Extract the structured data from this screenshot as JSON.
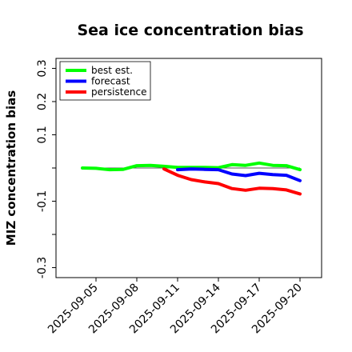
{
  "chart_data": {
    "type": "line",
    "title": "Sea ice concentration bias",
    "ylabel": "MIZ concentration bias",
    "xlabel": "",
    "x": [
      "2025-09-04",
      "2025-09-05",
      "2025-09-06",
      "2025-09-07",
      "2025-09-08",
      "2025-09-09",
      "2025-09-10",
      "2025-09-11",
      "2025-09-12",
      "2025-09-13",
      "2025-09-14",
      "2025-09-15",
      "2025-09-16",
      "2025-09-17",
      "2025-09-18",
      "2025-09-19",
      "2025-09-20"
    ],
    "x_tick_labels": [
      "2025-09-05",
      "2025-09-08",
      "2025-09-11",
      "2025-09-14",
      "2025-09-17",
      "2025-09-20"
    ],
    "highlighted_tick": "2025-09-11",
    "highlight_color": "#228b22",
    "y_ticks": [
      -0.3,
      -0.2,
      -0.1,
      0.0,
      0.1,
      0.2,
      0.3
    ],
    "y_tick_labels": [
      "-0.3",
      "",
      "-0.1",
      "",
      "0.1",
      "0.2",
      "0.3"
    ],
    "ylim": [
      -0.33,
      0.33
    ],
    "grid": false,
    "legend_position": "top-left",
    "reference_line": 0.0,
    "series": [
      {
        "name": "best est.",
        "color": "#00ff00",
        "x": [
          "2025-09-04",
          "2025-09-05",
          "2025-09-06",
          "2025-09-07",
          "2025-09-08",
          "2025-09-09",
          "2025-09-10",
          "2025-09-11",
          "2025-09-12",
          "2025-09-13",
          "2025-09-14",
          "2025-09-15",
          "2025-09-16",
          "2025-09-17",
          "2025-09-18",
          "2025-09-19",
          "2025-09-20"
        ],
        "values": [
          0.0,
          -0.001,
          -0.005,
          -0.004,
          0.007,
          0.008,
          0.005,
          0.002,
          0.002,
          0.002,
          0.001,
          0.01,
          0.008,
          0.015,
          0.008,
          0.007,
          -0.005
        ]
      },
      {
        "name": "forecast",
        "color": "#0000ff",
        "x": [
          "2025-09-11",
          "2025-09-12",
          "2025-09-13",
          "2025-09-14",
          "2025-09-15",
          "2025-09-16",
          "2025-09-17",
          "2025-09-18",
          "2025-09-19",
          "2025-09-20"
        ],
        "values": [
          -0.005,
          -0.003,
          -0.004,
          -0.005,
          -0.018,
          -0.023,
          -0.016,
          -0.02,
          -0.022,
          -0.038
        ]
      },
      {
        "name": "persistence",
        "color": "#ff0000",
        "x": [
          "2025-09-10",
          "2025-09-11",
          "2025-09-12",
          "2025-09-13",
          "2025-09-14",
          "2025-09-15",
          "2025-09-16",
          "2025-09-17",
          "2025-09-18",
          "2025-09-19",
          "2025-09-20"
        ],
        "values": [
          -0.003,
          -0.022,
          -0.035,
          -0.042,
          -0.047,
          -0.062,
          -0.067,
          -0.061,
          -0.062,
          -0.066,
          -0.078
        ]
      }
    ]
  }
}
